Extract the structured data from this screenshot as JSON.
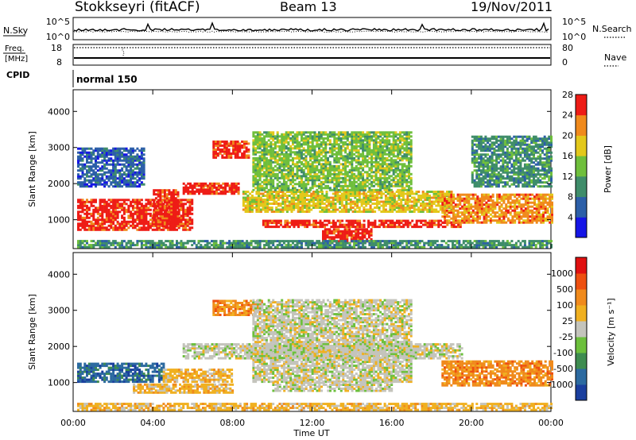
{
  "header": {
    "station": "Stokkseyri (fitACF)",
    "beam": "Beam 13",
    "date": "19/Nov/2011"
  },
  "aux_panels": {
    "nsky_label": "N.Sky",
    "nsky_ticks": [
      "10^5",
      "10^0"
    ],
    "nsearch_label": "N.Search",
    "nsearch_ticks": [
      "10^5",
      "10^0"
    ],
    "freq_label": "Freq.",
    "freq_unit": "[MHz]",
    "freq_ticks": [
      "18",
      "8"
    ],
    "nave_label": "Nave",
    "nave_ticks": [
      "80",
      "0"
    ],
    "cpid_label": "CPID",
    "cpid_value": "normal 150"
  },
  "chart_data": [
    {
      "type": "heatmap",
      "name": "power",
      "ylabel": "Slant Range [km]",
      "xlabel": "Time UT",
      "x_ticks": [
        "00:00",
        "04:00",
        "08:00",
        "12:00",
        "16:00",
        "20:00",
        "00:00"
      ],
      "x_range_hours": [
        0,
        24
      ],
      "y_ticks": [
        "1000",
        "2000",
        "3000",
        "4000"
      ],
      "ylim": [
        200,
        4600
      ],
      "colorbar_label": "Power [dB]",
      "colorbar_ticks": [
        "4",
        "8",
        "12",
        "16",
        "20",
        "24",
        "28"
      ],
      "colors": [
        "#1515e6",
        "#2c5fa8",
        "#3f8d6a",
        "#6fbf3c",
        "#e3c81b",
        "#f08a1c",
        "#ee1c16"
      ],
      "regions": [
        {
          "t0": 0.2,
          "t1": 6.0,
          "r0": 700,
          "r1": 1550,
          "level": 6
        },
        {
          "t0": 4.0,
          "t1": 5.3,
          "r0": 800,
          "r1": 1800,
          "level": 6
        },
        {
          "t0": 5.5,
          "t1": 8.3,
          "r0": 1700,
          "r1": 2000,
          "level": 6
        },
        {
          "t0": 7.0,
          "t1": 8.8,
          "r0": 2700,
          "r1": 3150,
          "level": 6
        },
        {
          "t0": 8.5,
          "t1": 19.0,
          "r0": 1200,
          "r1": 1800,
          "level": 4
        },
        {
          "t0": 9.5,
          "t1": 19.5,
          "r0": 780,
          "r1": 1000,
          "level": 6
        },
        {
          "t0": 12.5,
          "t1": 15.0,
          "r0": 380,
          "r1": 720,
          "level": 6
        },
        {
          "t0": 18.5,
          "t1": 24.0,
          "r0": 900,
          "r1": 1700,
          "level": 5
        },
        {
          "t0": 9.0,
          "t1": 17.0,
          "r0": 1800,
          "r1": 3400,
          "level": 3
        },
        {
          "t0": 0.2,
          "t1": 3.5,
          "r0": 1900,
          "r1": 3000,
          "level": 1
        },
        {
          "t0": 20.0,
          "t1": 24.0,
          "r0": 1900,
          "r1": 3300,
          "level": 2
        },
        {
          "t0": 0.2,
          "t1": 24.0,
          "r0": 220,
          "r1": 420,
          "level": 2
        }
      ]
    },
    {
      "type": "heatmap",
      "name": "velocity",
      "ylabel": "Slant Range [km]",
      "xlabel": "Time UT",
      "x_ticks": [
        "00:00",
        "04:00",
        "08:00",
        "12:00",
        "16:00",
        "20:00",
        "00:00"
      ],
      "x_range_hours": [
        0,
        24
      ],
      "y_ticks": [
        "1000",
        "2000",
        "3000",
        "4000"
      ],
      "ylim": [
        200,
        4600
      ],
      "colorbar_label": "Velocity [m s⁻¹]",
      "colorbar_ticks": [
        "1000",
        "500",
        "100",
        "25",
        "-25",
        "-100",
        "-500",
        "-1000"
      ],
      "colors": [
        "#1a3f9e",
        "#2c6aa0",
        "#3e8c50",
        "#6cc03c",
        "#c4c4bc",
        "#f0b020",
        "#f08a1c",
        "#ee5010",
        "#e01010"
      ],
      "regions": [
        {
          "t0": 0.2,
          "t1": 4.5,
          "r0": 1000,
          "r1": 1550,
          "level": 1
        },
        {
          "t0": 4.5,
          "t1": 8.0,
          "r0": 1000,
          "r1": 1350,
          "level": 5
        },
        {
          "t0": 3.0,
          "t1": 8.0,
          "r0": 700,
          "r1": 950,
          "level": 5
        },
        {
          "t0": 5.5,
          "t1": 19.5,
          "r0": 1650,
          "r1": 2050,
          "level": 4
        },
        {
          "t0": 7.0,
          "t1": 9.5,
          "r0": 2850,
          "r1": 3250,
          "level": 6
        },
        {
          "t0": 9.0,
          "t1": 17.0,
          "r0": 1000,
          "r1": 3300,
          "level": 4
        },
        {
          "t0": 10.0,
          "t1": 16.0,
          "r0": 750,
          "r1": 1000,
          "level": 4
        },
        {
          "t0": 18.5,
          "t1": 24.0,
          "r0": 900,
          "r1": 1600,
          "level": 6
        },
        {
          "t0": 0.2,
          "t1": 24.0,
          "r0": 220,
          "r1": 420,
          "level": 5
        }
      ]
    }
  ]
}
